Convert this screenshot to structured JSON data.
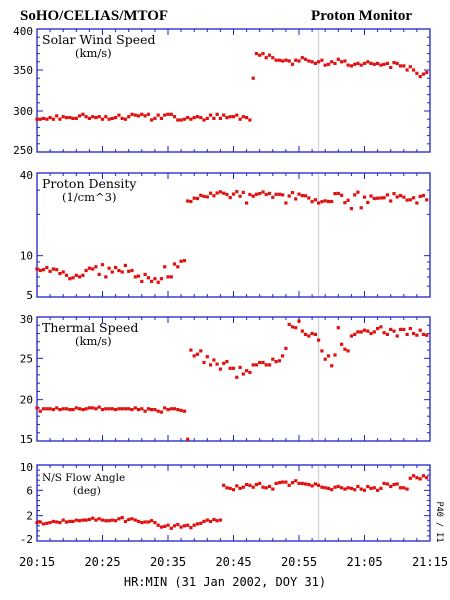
{
  "header": {
    "left": "SoHO/CELIAS/MTOF",
    "right": "Proton Monitor"
  },
  "xaxis": {
    "caption": "HR:MIN (31 Jan 2002, DOY 31)",
    "ticks": [
      "20:15",
      "20:25",
      "20:35",
      "20:45",
      "20:55",
      "21:05",
      "21:15"
    ]
  },
  "side_note": "P40 / I1",
  "colors": {
    "axis": "#1e24c8",
    "data": "#e01010",
    "marker": "#c8c8c8"
  },
  "chart_data": [
    {
      "type": "scatter",
      "title": "Solar Wind Speed",
      "unit": "(km/s)",
      "ylim": [
        250,
        400
      ],
      "yscale": "linear",
      "yticks": [
        250,
        300,
        350,
        400
      ],
      "xlim_minutes": [
        0,
        60
      ],
      "x_minutes": [
        0.0,
        0.5,
        1.0,
        1.5,
        2.0,
        2.5,
        3.0,
        3.5,
        4.0,
        4.5,
        5.0,
        5.5,
        6.0,
        6.5,
        7.0,
        7.5,
        8.0,
        8.5,
        9.0,
        9.5,
        10.0,
        10.5,
        11.0,
        11.5,
        12.0,
        12.5,
        13.0,
        13.5,
        14.0,
        14.5,
        15.0,
        15.5,
        16.0,
        16.5,
        17.0,
        17.5,
        18.0,
        18.5,
        19.0,
        19.5,
        20.0,
        20.5,
        21.0,
        21.5,
        22.0,
        22.5,
        23.0,
        23.5,
        24.0,
        24.5,
        25.0,
        25.5,
        26.0,
        26.5,
        27.0,
        27.5,
        28.0,
        28.5,
        29.0,
        29.5,
        30.0,
        30.5,
        31.0,
        31.5,
        32.0,
        32.5,
        33.0,
        33.5,
        34.0,
        34.5,
        35.0,
        35.5,
        36.0,
        36.5,
        37.0,
        37.5,
        38.0,
        38.5,
        39.0,
        39.5,
        40.0,
        40.5,
        41.0,
        41.5,
        42.0,
        42.5,
        43.0,
        43.5,
        44.0,
        44.5,
        45.0,
        45.5,
        46.0,
        46.5,
        47.0,
        47.5,
        48.0,
        48.5,
        49.0,
        49.5,
        50.0,
        50.5,
        51.0,
        51.5,
        52.0,
        52.5,
        53.0,
        53.5,
        54.0,
        54.5,
        55.0,
        55.5,
        56.0,
        56.5,
        57.0,
        57.5,
        58.0,
        58.5,
        59.0,
        59.5
      ],
      "values": [
        290,
        290,
        291,
        290,
        292,
        290,
        294,
        290,
        293,
        292,
        292,
        291,
        291,
        294,
        296,
        293,
        291,
        293,
        292,
        293,
        290,
        293,
        290,
        291,
        292,
        295,
        291,
        290,
        293,
        296,
        295,
        294,
        296,
        294,
        296,
        289,
        291,
        295,
        291,
        295,
        296,
        296,
        293,
        289,
        289,
        290,
        292,
        290,
        292,
        293,
        292,
        289,
        291,
        295,
        291,
        296,
        291,
        295,
        292,
        293,
        293,
        295,
        290,
        293,
        292,
        289,
        340,
        370,
        368,
        370,
        365,
        368,
        365,
        362,
        362,
        361,
        362,
        361,
        357,
        362,
        361,
        365,
        363,
        361,
        360,
        358,
        360,
        362,
        356,
        357,
        360,
        358,
        363,
        360,
        361,
        356,
        355,
        357,
        358,
        356,
        358,
        360,
        358,
        357,
        358,
        356,
        357,
        358,
        353,
        359,
        358,
        355,
        355,
        350,
        354,
        350,
        346,
        342,
        345,
        347
      ]
    },
    {
      "type": "scatter",
      "title": "Proton Density",
      "unit": "(1/cm^3)",
      "ylim": [
        5,
        40
      ],
      "yscale": "log",
      "yticks": [
        5,
        10,
        40
      ],
      "xlim_minutes": [
        0,
        60
      ],
      "x_minutes": [
        0.0,
        0.5,
        1.0,
        1.5,
        2.0,
        2.5,
        3.0,
        3.5,
        4.0,
        4.5,
        5.0,
        5.5,
        6.0,
        6.5,
        7.0,
        7.5,
        8.0,
        8.5,
        9.0,
        9.5,
        10.0,
        10.5,
        11.0,
        11.5,
        12.0,
        12.5,
        13.0,
        13.5,
        14.0,
        14.5,
        15.0,
        15.5,
        16.0,
        16.5,
        17.0,
        17.5,
        18.0,
        18.5,
        19.0,
        19.5,
        20.0,
        20.5,
        21.0,
        21.5,
        22.0,
        22.5,
        23.0,
        23.5,
        24.0,
        24.5,
        25.0,
        25.5,
        26.0,
        26.5,
        27.0,
        27.5,
        28.0,
        28.5,
        29.0,
        29.5,
        30.0,
        30.5,
        31.0,
        31.5,
        32.0,
        32.5,
        33.0,
        33.5,
        34.0,
        34.5,
        35.0,
        35.5,
        36.0,
        36.5,
        37.0,
        37.5,
        38.0,
        38.5,
        39.0,
        39.5,
        40.0,
        40.5,
        41.0,
        41.5,
        42.0,
        42.5,
        43.0,
        43.5,
        44.0,
        44.5,
        45.0,
        45.5,
        46.0,
        46.5,
        47.0,
        47.5,
        48.0,
        48.5,
        49.0,
        49.5,
        50.0,
        50.5,
        51.0,
        51.5,
        52.0,
        52.5,
        53.0,
        53.5,
        54.0,
        54.5,
        55.0,
        55.5,
        56.0,
        56.5,
        57.0,
        57.5,
        58.0,
        58.5,
        59.0,
        59.5
      ],
      "values": [
        8.0,
        7.8,
        7.9,
        8.2,
        7.7,
        8.0,
        7.9,
        7.4,
        7.6,
        7.2,
        6.8,
        6.9,
        7.2,
        7.0,
        7.2,
        7.8,
        8.1,
        8.0,
        8.3,
        7.3,
        8.6,
        7.0,
        8.1,
        7.6,
        8.2,
        7.8,
        7.6,
        8.5,
        7.7,
        7.8,
        7.0,
        7.1,
        6.5,
        7.3,
        6.9,
        6.5,
        6.8,
        6.4,
        6.8,
        8.3,
        7.0,
        7.0,
        8.7,
        8.3,
        9.1,
        9.2,
        25.0,
        24.8,
        26.2,
        26.1,
        27.5,
        27.0,
        26.8,
        28.5,
        27.3,
        28.6,
        29.2,
        28.5,
        27.9,
        26.5,
        28.1,
        29.3,
        27.1,
        28.9,
        24.2,
        27.9,
        27.1,
        28.0,
        28.3,
        29.1,
        27.9,
        28.4,
        26.6,
        28.0,
        28.0,
        27.7,
        24.2,
        27.2,
        28.8,
        25.9,
        28.1,
        27.4,
        27.3,
        26.3,
        24.7,
        25.5,
        24.2,
        24.7,
        25.1,
        24.8,
        24.8,
        28.3,
        28.4,
        27.5,
        24.3,
        25.3,
        22.0,
        27.7,
        29.0,
        22.3,
        26.7,
        24.4,
        27.2,
        26.1,
        26.2,
        26.3,
        26.4,
        27.7,
        25.0,
        28.3,
        26.8,
        27.4,
        26.7,
        25.4,
        25.5,
        26.4,
        24.2,
        27.0,
        27.4,
        25.5
      ]
    },
    {
      "type": "scatter",
      "title": "Thermal Speed",
      "unit": "(km/s)",
      "ylim": [
        15,
        30
      ],
      "yscale": "linear",
      "yticks": [
        15,
        20,
        25,
        30
      ],
      "xlim_minutes": [
        0,
        60
      ],
      "x_minutes": [
        0.0,
        0.5,
        1.0,
        1.5,
        2.0,
        2.5,
        3.0,
        3.5,
        4.0,
        4.5,
        5.0,
        5.5,
        6.0,
        6.5,
        7.0,
        7.5,
        8.0,
        8.5,
        9.0,
        9.5,
        10.0,
        10.5,
        11.0,
        11.5,
        12.0,
        12.5,
        13.0,
        13.5,
        14.0,
        14.5,
        15.0,
        15.5,
        16.0,
        16.5,
        17.0,
        17.5,
        18.0,
        18.5,
        19.0,
        19.5,
        20.0,
        20.5,
        21.0,
        21.5,
        22.0,
        22.5,
        23.0,
        23.5,
        24.0,
        24.5,
        25.0,
        25.5,
        26.0,
        26.5,
        27.0,
        27.5,
        28.0,
        28.5,
        29.0,
        29.5,
        30.0,
        30.5,
        31.0,
        31.5,
        32.0,
        32.5,
        33.0,
        33.5,
        34.0,
        34.5,
        35.0,
        35.5,
        36.0,
        36.5,
        37.0,
        37.5,
        38.0,
        38.5,
        39.0,
        39.5,
        40.0,
        40.5,
        41.0,
        41.5,
        42.0,
        42.5,
        43.0,
        43.5,
        44.0,
        44.5,
        45.0,
        45.5,
        46.0,
        46.5,
        47.0,
        47.5,
        48.0,
        48.5,
        49.0,
        49.5,
        50.0,
        50.5,
        51.0,
        51.5,
        52.0,
        52.5,
        53.0,
        53.5,
        54.0,
        54.5,
        55.0,
        55.5,
        56.0,
        56.5,
        57.0,
        57.5,
        58.0,
        58.5,
        59.0,
        59.5
      ],
      "values": [
        19.0,
        18.6,
        18.9,
        18.9,
        18.9,
        18.8,
        19.0,
        18.8,
        18.9,
        18.9,
        18.8,
        18.8,
        19.0,
        18.9,
        18.8,
        18.9,
        19.0,
        19.0,
        18.9,
        19.1,
        18.8,
        18.9,
        18.9,
        18.9,
        18.8,
        18.9,
        18.9,
        18.9,
        18.9,
        18.8,
        19.0,
        18.8,
        18.9,
        18.6,
        18.9,
        18.8,
        18.8,
        18.6,
        18.5,
        19.0,
        18.8,
        18.9,
        18.9,
        18.8,
        18.7,
        18.6,
        15.2,
        26.0,
        25.3,
        25.5,
        25.9,
        24.5,
        25.2,
        24.2,
        24.8,
        24.3,
        23.7,
        24.4,
        24.6,
        23.8,
        23.8,
        22.7,
        23.9,
        23.1,
        23.5,
        23.3,
        24.2,
        24.2,
        24.5,
        24.5,
        24.2,
        24.2,
        24.9,
        24.6,
        24.7,
        25.3,
        26.2,
        29.1,
        28.8,
        28.7,
        29.5,
        28.3,
        27.9,
        27.7,
        28.0,
        27.9,
        27.2,
        25.9,
        24.9,
        25.3,
        24.1,
        25.4,
        28.7,
        26.7,
        26.1,
        25.9,
        27.7,
        27.9,
        28.2,
        28.2,
        28.4,
        28.3,
        28.0,
        28.2,
        28.6,
        28.8,
        28.1,
        27.9,
        28.5,
        28.3,
        27.7,
        28.5,
        28.5,
        27.9,
        28.6,
        28.0,
        27.8,
        28.4,
        27.9,
        27.8
      ]
    },
    {
      "type": "scatter",
      "title": "N/S Flow Angle",
      "unit": "(deg)",
      "ylim": [
        -2,
        10
      ],
      "yscale": "linear",
      "yticks": [
        -2,
        2,
        6,
        10
      ],
      "xlim_minutes": [
        0,
        60
      ],
      "x_minutes": [
        0.0,
        0.5,
        1.0,
        1.5,
        2.0,
        2.5,
        3.0,
        3.5,
        4.0,
        4.5,
        5.0,
        5.5,
        6.0,
        6.5,
        7.0,
        7.5,
        8.0,
        8.5,
        9.0,
        9.5,
        10.0,
        10.5,
        11.0,
        11.5,
        12.0,
        12.5,
        13.0,
        13.5,
        14.0,
        14.5,
        15.0,
        15.5,
        16.0,
        16.5,
        17.0,
        17.5,
        18.0,
        18.5,
        19.0,
        19.5,
        20.0,
        20.5,
        21.0,
        21.5,
        22.0,
        22.5,
        23.0,
        23.5,
        24.0,
        24.5,
        25.0,
        25.5,
        26.0,
        26.5,
        27.0,
        27.5,
        28.0,
        28.5,
        29.0,
        29.5,
        30.0,
        30.5,
        31.0,
        31.5,
        32.0,
        32.5,
        33.0,
        33.5,
        34.0,
        34.5,
        35.0,
        35.5,
        36.0,
        36.5,
        37.0,
        37.5,
        38.0,
        38.5,
        39.0,
        39.5,
        40.0,
        40.5,
        41.0,
        41.5,
        42.0,
        42.5,
        43.0,
        43.5,
        44.0,
        44.5,
        45.0,
        45.5,
        46.0,
        46.5,
        47.0,
        47.5,
        48.0,
        48.5,
        49.0,
        49.5,
        50.0,
        50.5,
        51.0,
        51.5,
        52.0,
        52.5,
        53.0,
        53.5,
        54.0,
        54.5,
        55.0,
        55.5,
        56.0,
        56.5,
        57.0,
        57.5,
        58.0,
        58.5,
        59.0,
        59.5
      ],
      "values": [
        0.9,
        1.0,
        0.7,
        0.8,
        0.9,
        1.1,
        1.0,
        0.9,
        1.3,
        1.0,
        1.1,
        1.1,
        1.3,
        1.2,
        1.3,
        1.3,
        1.4,
        1.6,
        1.3,
        1.5,
        1.3,
        1.2,
        1.2,
        1.3,
        1.2,
        1.5,
        1.7,
        1.1,
        1.4,
        1.5,
        1.3,
        1.1,
        0.9,
        1.0,
        1.0,
        1.2,
        0.9,
        0.5,
        0.2,
        0.3,
        0.5,
        0.0,
        0.4,
        0.6,
        0.2,
        0.4,
        0.5,
        0.1,
        0.5,
        0.7,
        0.8,
        1.1,
        1.3,
        1.1,
        1.4,
        1.2,
        1.3,
        6.8,
        6.4,
        6.3,
        6.1,
        6.7,
        6.3,
        6.5,
        6.9,
        6.8,
        6.5,
        6.9,
        7.1,
        6.5,
        6.4,
        6.6,
        6.2,
        7.1,
        7.2,
        7.3,
        7.3,
        6.8,
        7.2,
        7.5,
        7.1,
        7.1,
        7.0,
        6.9,
        6.7,
        7.0,
        6.8,
        6.5,
        6.4,
        6.3,
        6.1,
        6.5,
        6.6,
        6.4,
        6.2,
        6.4,
        6.3,
        6.1,
        6.6,
        6.2,
        6.0,
        6.6,
        6.3,
        6.4,
        6.0,
        6.3,
        7.1,
        7.0,
        6.6,
        6.9,
        7.0,
        6.4,
        6.4,
        6.2,
        7.9,
        8.3,
        8.0,
        7.8,
        8.3,
        8.0
      ]
    }
  ]
}
